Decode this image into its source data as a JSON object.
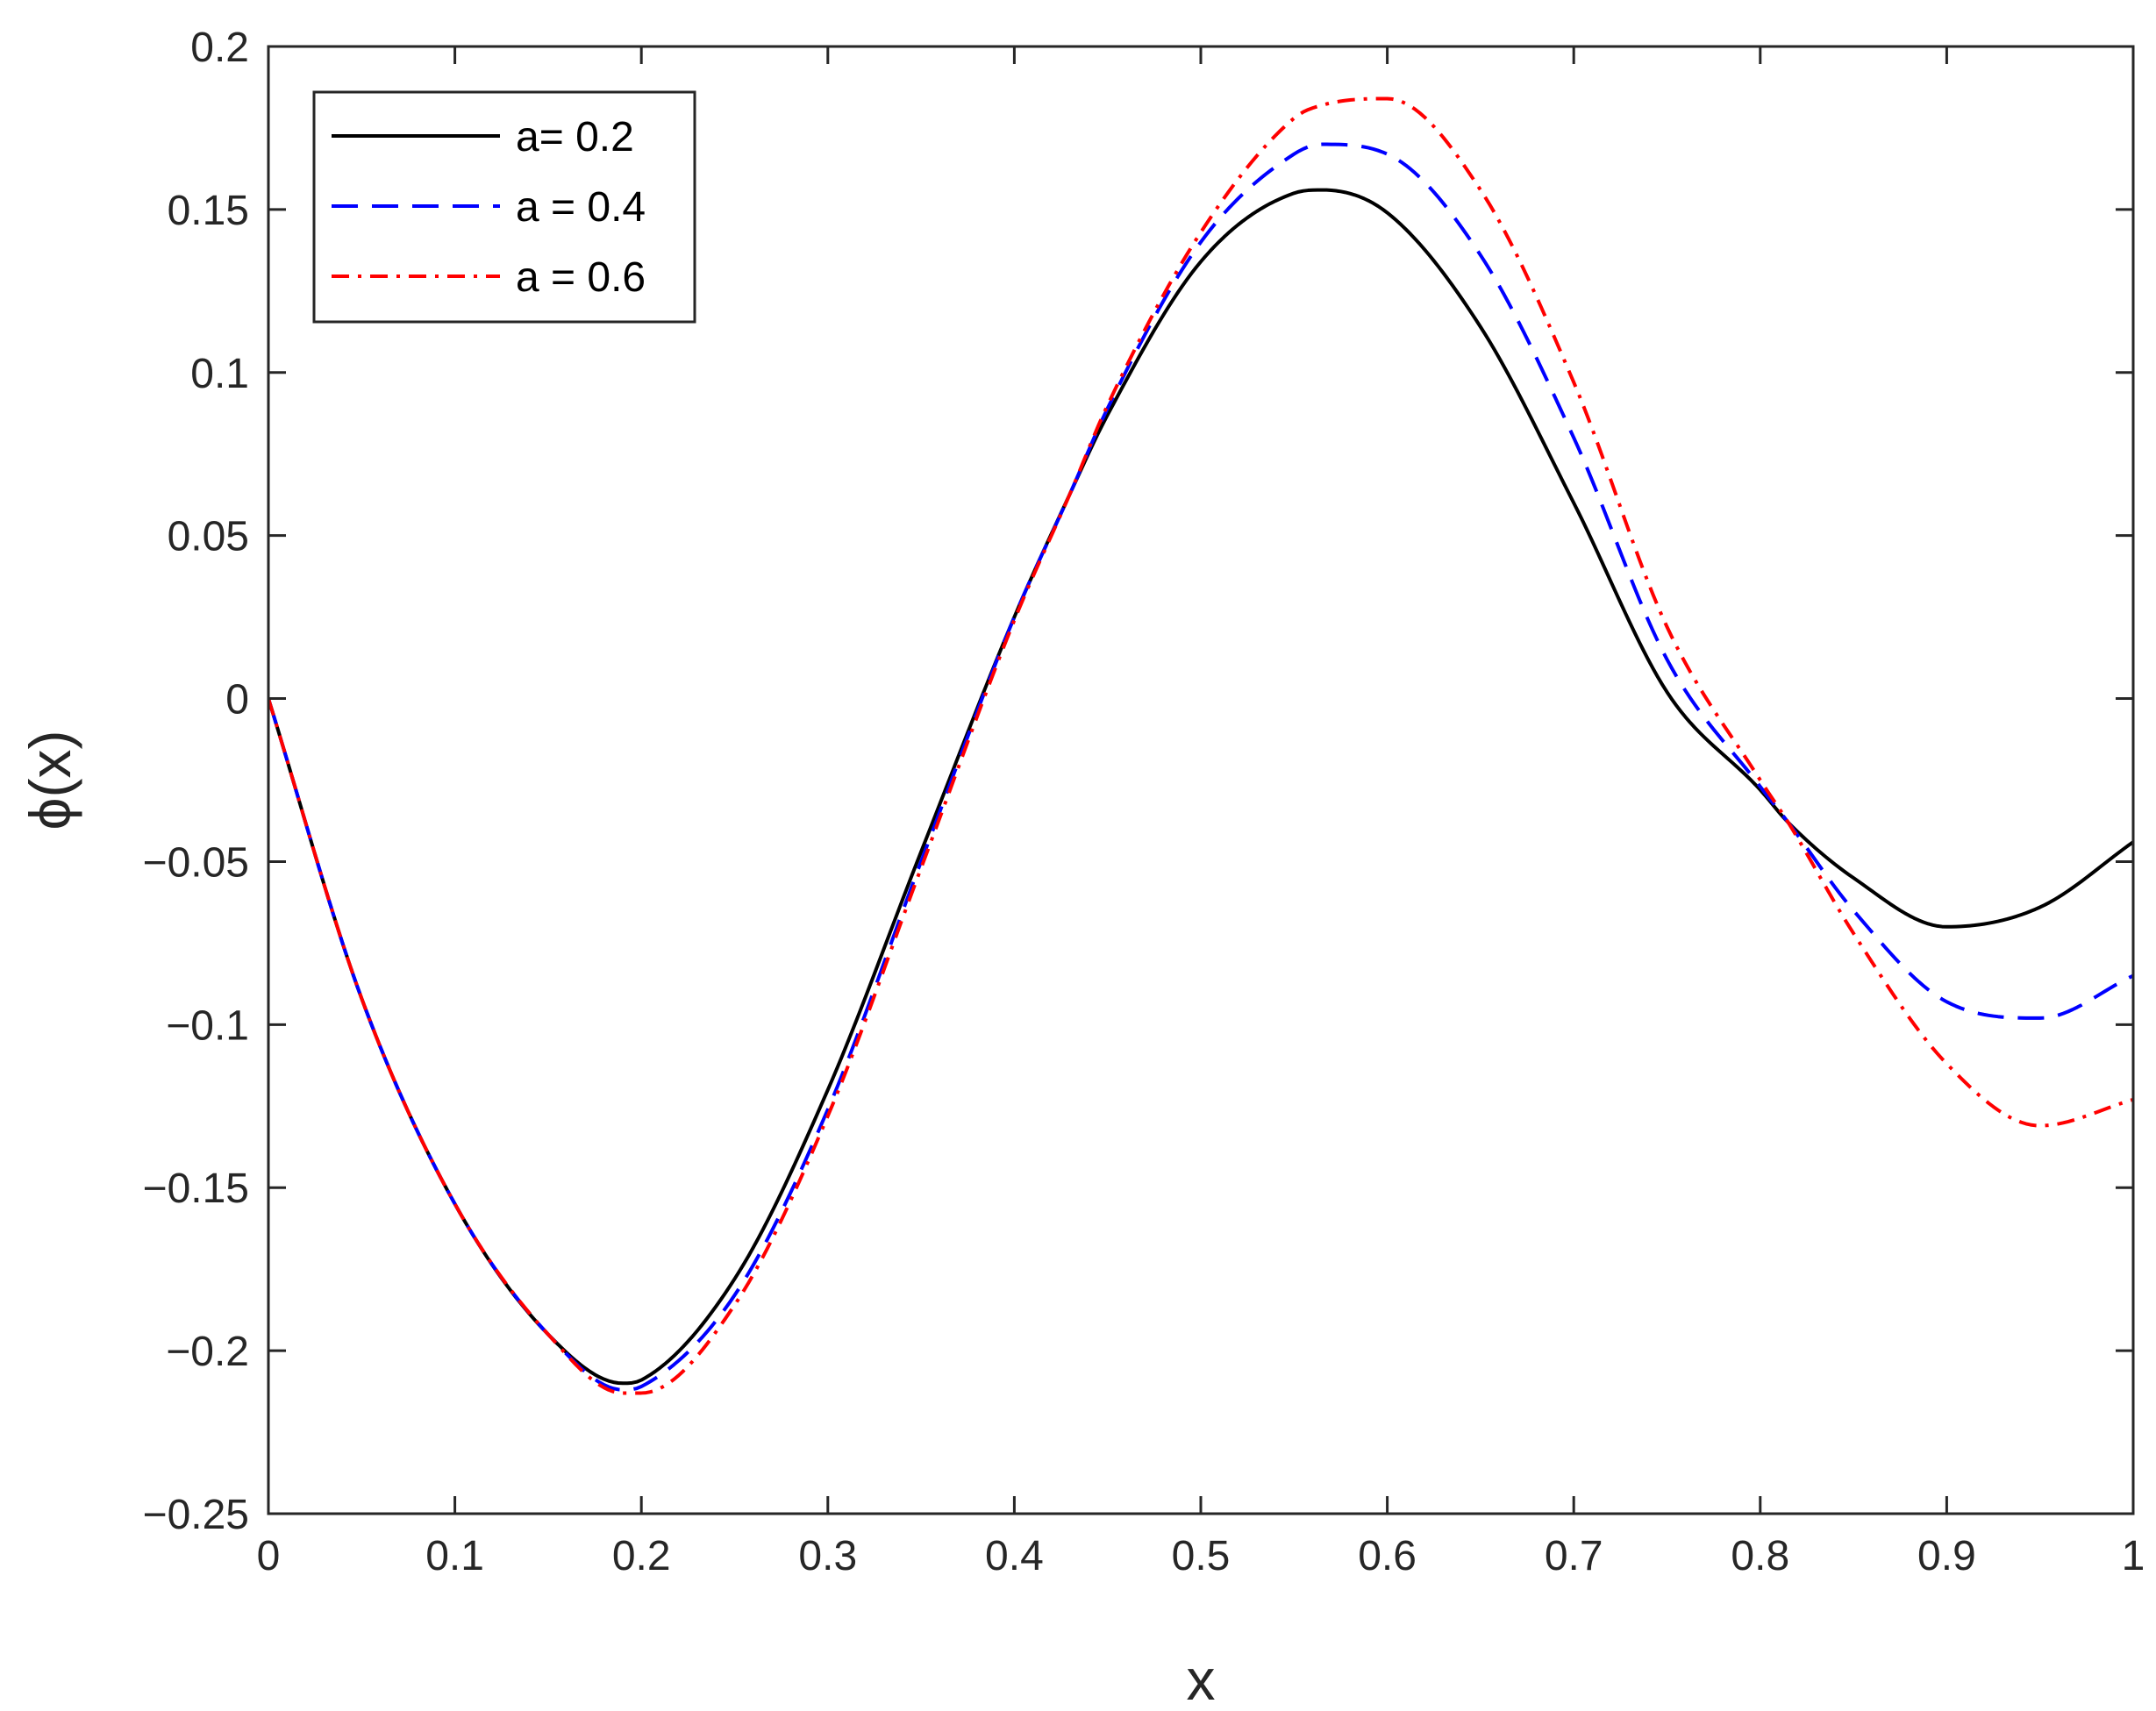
{
  "chart_data": {
    "type": "line",
    "title": "",
    "xlabel": "x",
    "ylabel": "ϕ(x)",
    "xlim": [
      0,
      1
    ],
    "ylim": [
      -0.25,
      0.2
    ],
    "xticks": [
      0,
      0.1,
      0.2,
      0.3,
      0.4,
      0.5,
      0.6,
      0.7,
      0.8,
      0.9,
      1
    ],
    "xtick_labels": [
      "0",
      "0.1",
      "0.2",
      "0.3",
      "0.4",
      "0.5",
      "0.6",
      "0.7",
      "0.8",
      "0.9",
      "1"
    ],
    "yticks": [
      -0.25,
      -0.2,
      -0.15,
      -0.1,
      -0.05,
      0,
      0.05,
      0.1,
      0.15,
      0.2
    ],
    "ytick_labels": [
      "−0.25",
      "−0.2",
      "−0.15",
      "−0.1",
      "−0.05",
      "0",
      "0.05",
      "0.1",
      "0.15",
      "0.2"
    ],
    "grid": false,
    "legend_position": "top-left",
    "x": [
      0,
      0.05,
      0.1,
      0.15,
      0.19,
      0.2,
      0.25,
      0.3,
      0.35,
      0.4,
      0.43,
      0.45,
      0.5,
      0.55,
      0.565,
      0.6,
      0.65,
      0.7,
      0.75,
      0.8,
      0.815,
      0.85,
      0.9,
      0.95,
      1
    ],
    "series": [
      {
        "name": "a= 0.2",
        "color": "#000000",
        "line_style": "solid",
        "values": [
          0,
          -0.092,
          -0.155,
          -0.195,
          -0.21,
          -0.209,
          -0.178,
          -0.12,
          -0.047,
          0.025,
          0.063,
          0.087,
          0.134,
          0.155,
          0.156,
          0.149,
          0.114,
          0.06,
          0.002,
          -0.028,
          -0.038,
          -0.055,
          -0.07,
          -0.064,
          -0.044
        ]
      },
      {
        "name": "a = 0.4",
        "color": "#0000ff",
        "line_style": "dashed",
        "values": [
          0,
          -0.092,
          -0.155,
          -0.195,
          -0.212,
          -0.211,
          -0.183,
          -0.126,
          -0.05,
          0.025,
          0.063,
          0.089,
          0.14,
          0.167,
          0.17,
          0.167,
          0.136,
          0.08,
          0.012,
          -0.027,
          -0.038,
          -0.065,
          -0.093,
          -0.098,
          -0.085
        ]
      },
      {
        "name": "a = 0.6",
        "color": "#ff0000",
        "line_style": "dash-dot",
        "values": [
          0,
          -0.092,
          -0.155,
          -0.195,
          -0.213,
          -0.213,
          -0.186,
          -0.128,
          -0.052,
          0.024,
          0.063,
          0.09,
          0.143,
          0.178,
          0.182,
          0.184,
          0.156,
          0.097,
          0.022,
          -0.025,
          -0.038,
          -0.072,
          -0.112,
          -0.131,
          -0.123
        ]
      }
    ]
  }
}
